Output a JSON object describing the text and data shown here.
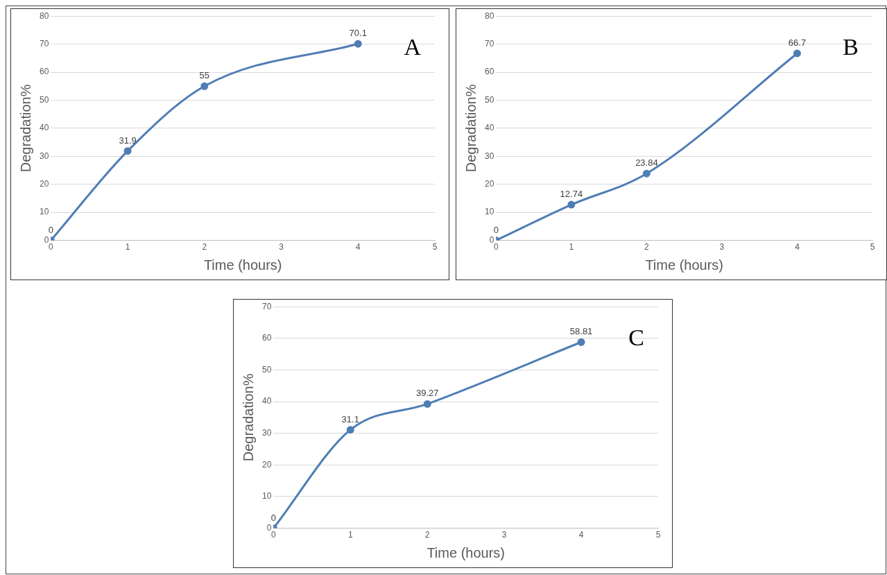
{
  "chart_data": [
    {
      "type": "line",
      "annotations": [
        "A"
      ],
      "xlabel": "Time (hours)",
      "ylabel": "Degradation%",
      "x": [
        0,
        1,
        2,
        4
      ],
      "values": [
        0,
        31.9,
        55,
        70.1
      ],
      "color": "#4f7db5",
      "xlim": [
        0,
        5
      ],
      "xticks": [
        0,
        1,
        2,
        3,
        4,
        5
      ],
      "ylim": [
        0,
        80
      ],
      "yticks": [
        0,
        10,
        20,
        30,
        40,
        50,
        60,
        70,
        80
      ],
      "grid": "y",
      "marker": "circle",
      "data_labels": true
    },
    {
      "type": "line",
      "annotations": [
        "B"
      ],
      "xlabel": "Time (hours)",
      "ylabel": "Degradation%",
      "x": [
        0,
        1,
        2,
        4
      ],
      "values": [
        0,
        12.74,
        23.84,
        66.7
      ],
      "color": "#4f7db5",
      "xlim": [
        0,
        5
      ],
      "xticks": [
        0,
        1,
        2,
        3,
        4,
        5
      ],
      "ylim": [
        0,
        80
      ],
      "yticks": [
        0,
        10,
        20,
        30,
        40,
        50,
        60,
        70,
        80
      ],
      "grid": "y",
      "marker": "circle",
      "data_labels": true
    },
    {
      "type": "line",
      "annotations": [
        "C"
      ],
      "xlabel": "Time (hours)",
      "ylabel": "Degradation%",
      "x": [
        0,
        1,
        2,
        4
      ],
      "values": [
        0,
        31.1,
        39.27,
        58.81
      ],
      "color": "#4f7db5",
      "xlim": [
        0,
        5
      ],
      "xticks": [
        0,
        1,
        2,
        3,
        4,
        5
      ],
      "ylim": [
        0,
        70
      ],
      "yticks": [
        0,
        10,
        20,
        30,
        40,
        50,
        60,
        70
      ],
      "grid": "y",
      "marker": "circle",
      "data_labels": true
    }
  ]
}
